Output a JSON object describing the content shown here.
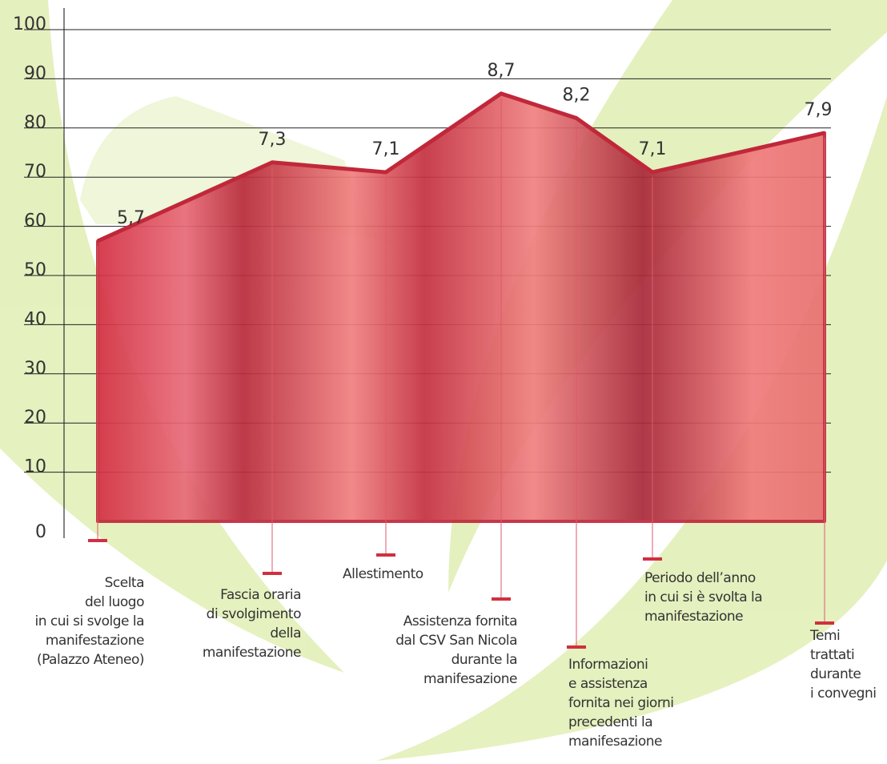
{
  "chart_data": {
    "type": "area",
    "categories": [
      "Scelta\ndel luogo\nin cui si svolge la\nmanifestazione\n(Palazzo Ateneo)",
      "Fascia oraria\ndi svolgimento\ndella\nmanifestazione",
      "Allestimento",
      "Assistenza fornita\ndal CSV San Nicola\ndurante la\nmanifesazione",
      "Informazioni\ne assistenza\nfornita nei giorni\nprecedenti la\nmanifesazione",
      "Periodo dell’anno\nin cui si è svolta la\nmanifestazione",
      "Temi\ntrattati\ndurante\ni convegni"
    ],
    "values": [
      57,
      73,
      71,
      87,
      82,
      71,
      79
    ],
    "value_labels": [
      "5,7",
      "7,3",
      "7,1",
      "8,7",
      "8,2",
      "7,1",
      "7,9"
    ],
    "color": "#d0303f",
    "ylim": [
      0,
      100
    ],
    "yticks": [
      0,
      10,
      20,
      30,
      40,
      50,
      60,
      70,
      80,
      90,
      100
    ],
    "grid": true
  }
}
